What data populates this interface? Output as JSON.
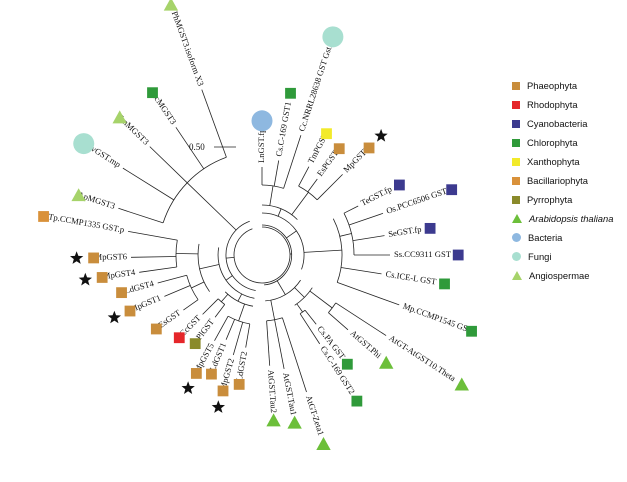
{
  "colors": {
    "Phaeophyta": "#c98d3c",
    "Rhodophyta": "#e5262a",
    "Cyanobacteria": "#3c3a8f",
    "Chlorophyta": "#2f9a3a",
    "Xanthophyta": "#f2ea2a",
    "Bacillariophyta": "#d9913a",
    "Pyrrophyta": "#8a8a2a",
    "Arabidopsis": "#6cbf3a",
    "Bacteria": "#8eb8e0",
    "Fungi": "#a8dfd0",
    "Angiospermae": "#a6d36a"
  },
  "scale_label": "0.50",
  "legend": [
    {
      "label": "Phaeophyta",
      "shape": "square",
      "color": "#c98d3c",
      "italic": false
    },
    {
      "label": "Rhodophyta",
      "shape": "square",
      "color": "#e5262a",
      "italic": false
    },
    {
      "label": "Cyanobacteria",
      "shape": "square",
      "color": "#3c3a8f",
      "italic": false
    },
    {
      "label": "Chlorophyta",
      "shape": "square",
      "color": "#2f9a3a",
      "italic": false
    },
    {
      "label": "Xanthophyta",
      "shape": "square",
      "color": "#f2ea2a",
      "italic": false
    },
    {
      "label": "Bacillariophyta",
      "shape": "square",
      "color": "#d9913a",
      "italic": false
    },
    {
      "label": "Pyrrophyta",
      "shape": "square",
      "color": "#8a8a2a",
      "italic": false
    },
    {
      "label": "Arabidopsis thaliana",
      "shape": "triangle",
      "color": "#6cbf3a",
      "italic": true
    },
    {
      "label": "Bacteria",
      "shape": "circle",
      "color": "#8eb8e0",
      "italic": false
    },
    {
      "label": "Fungi",
      "shape": "circle",
      "color": "#a8dfd0",
      "italic": false
    },
    {
      "label": "Angiospermae",
      "shape": "triangle",
      "color": "#a6d36a",
      "italic": false
    }
  ],
  "leaves": [
    {
      "label": "LnGST.fp",
      "group": "Bacteria",
      "marker": "circle",
      "starred": false
    },
    {
      "label": "Cs.C-169 GST1",
      "group": "Chlorophyta",
      "marker": "square",
      "starred": false
    },
    {
      "label": "Cc.NRRL28638 GST GstA",
      "group": "Fungi",
      "marker": "circle",
      "starred": false
    },
    {
      "label": "TmPGST",
      "group": "Xanthophyta",
      "marker": "square",
      "starred": false
    },
    {
      "label": "EsPGST",
      "group": "Phaeophyta",
      "marker": "square",
      "starred": false
    },
    {
      "label": "MpGST3",
      "group": "Phaeophyta",
      "marker": "square",
      "starred": true
    },
    {
      "label": "TeGST.fp",
      "group": "Cyanobacteria",
      "marker": "square",
      "starred": false
    },
    {
      "label": "Os.PCC6506 GST",
      "group": "Cyanobacteria",
      "marker": "square",
      "starred": false
    },
    {
      "label": "SeGST.fp",
      "group": "Cyanobacteria",
      "marker": "square",
      "starred": false
    },
    {
      "label": "Ss.CC9311 GST",
      "group": "Cyanobacteria",
      "marker": "square",
      "starred": false
    },
    {
      "label": "Cs.ICE-L GST",
      "group": "Chlorophyta",
      "marker": "square",
      "starred": false
    },
    {
      "label": "Mp.CCMP1545 GST",
      "group": "Chlorophyta",
      "marker": "square",
      "starred": false
    },
    {
      "label": "AtGT-AtGST10.Theta",
      "group": "Arabidopsis",
      "marker": "triangle",
      "starred": false
    },
    {
      "label": "AtGST.Phi",
      "group": "Arabidopsis",
      "marker": "triangle",
      "starred": false
    },
    {
      "label": "Cs.PA GST",
      "group": "Chlorophyta",
      "marker": "square",
      "starred": false
    },
    {
      "label": "Cs.C-169 GST2",
      "group": "Chlorophyta",
      "marker": "square",
      "starred": false
    },
    {
      "label": "AtGT-Zeta1",
      "group": "Arabidopsis",
      "marker": "triangle",
      "starred": false
    },
    {
      "label": "AtGST.Tau1",
      "group": "Arabidopsis",
      "marker": "triangle",
      "starred": false
    },
    {
      "label": "AtGST.Tau2",
      "group": "Arabidopsis",
      "marker": "triangle",
      "starred": false
    },
    {
      "label": "LdGST2",
      "group": "Phaeophyta",
      "marker": "square",
      "starred": false
    },
    {
      "label": "MpGST2",
      "group": "Phaeophyta",
      "marker": "square",
      "starred": true
    },
    {
      "label": "LdGST1",
      "group": "Phaeophyta",
      "marker": "square",
      "starred": false
    },
    {
      "label": "MpGST5",
      "group": "Phaeophyta",
      "marker": "square",
      "starred": true
    },
    {
      "label": "PlGST",
      "group": "Pyrrophyta",
      "marker": "square",
      "starred": false
    },
    {
      "label": "CcGST",
      "group": "Rhodophyta",
      "marker": "square",
      "starred": false
    },
    {
      "label": "EsGST",
      "group": "Phaeophyta",
      "marker": "square",
      "starred": false
    },
    {
      "label": "MpGST1",
      "group": "Phaeophyta",
      "marker": "square",
      "starred": true
    },
    {
      "label": "LdGST4",
      "group": "Phaeophyta",
      "marker": "square",
      "starred": false
    },
    {
      "label": "MpGST4",
      "group": "Phaeophyta",
      "marker": "square",
      "starred": true
    },
    {
      "label": "MpGST6",
      "group": "Phaeophyta",
      "marker": "square",
      "starred": true
    },
    {
      "label": "Tp.CCMP1335 GST.p",
      "group": "Bacillariophyta",
      "marker": "square",
      "starred": false
    },
    {
      "label": "ApMGST3",
      "group": "Angiospermae",
      "marker": "triangle",
      "starred": false
    },
    {
      "label": "HvGST.mp",
      "group": "Fungi",
      "marker": "circle",
      "starred": false
    },
    {
      "label": "ZmMGST3",
      "group": "Angiospermae",
      "marker": "triangle",
      "starred": false
    },
    {
      "label": "AcMGST3",
      "group": "Chlorophyta",
      "marker": "square",
      "starred": false
    },
    {
      "label": "PhMGST3.isoform X3",
      "group": "Angiospermae",
      "marker": "triangle",
      "starred": false
    }
  ]
}
